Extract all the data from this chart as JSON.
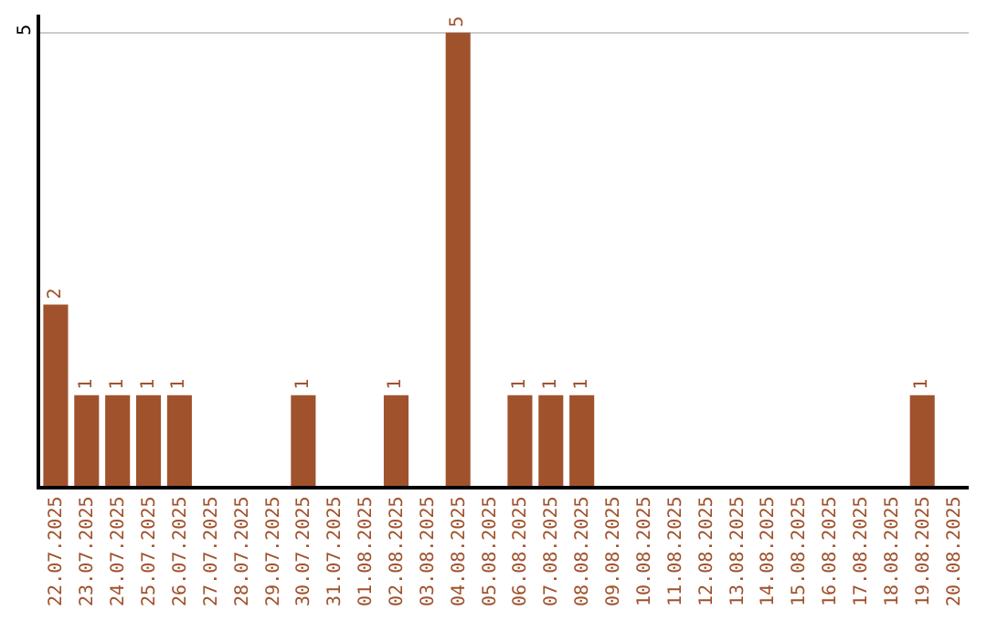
{
  "chart_data": {
    "type": "bar",
    "categories": [
      "22.07.2025",
      "23.07.2025",
      "24.07.2025",
      "25.07.2025",
      "26.07.2025",
      "27.07.2025",
      "28.07.2025",
      "29.07.2025",
      "30.07.2025",
      "31.07.2025",
      "01.08.2025",
      "02.08.2025",
      "03.08.2025",
      "04.08.2025",
      "05.08.2025",
      "06.08.2025",
      "07.08.2025",
      "08.08.2025",
      "09.08.2025",
      "10.08.2025",
      "11.08.2025",
      "12.08.2025",
      "13.08.2025",
      "14.08.2025",
      "15.08.2025",
      "16.08.2025",
      "17.08.2025",
      "18.08.2025",
      "19.08.2025",
      "20.08.2025"
    ],
    "values": [
      2,
      1,
      1,
      1,
      1,
      0,
      0,
      0,
      1,
      0,
      0,
      1,
      0,
      5,
      0,
      1,
      1,
      1,
      0,
      0,
      0,
      0,
      0,
      0,
      0,
      0,
      0,
      0,
      1,
      0
    ],
    "value_labels": [
      "2",
      "1",
      "1",
      "1",
      "1",
      null,
      null,
      null,
      "1",
      null,
      null,
      "1",
      null,
      "5",
      null,
      "1",
      "1",
      "1",
      null,
      null,
      null,
      null,
      null,
      null,
      null,
      null,
      null,
      null,
      "1",
      null
    ],
    "color": "#a0522d",
    "ylim": [
      0,
      5.2
    ],
    "yticks": [
      5
    ],
    "grid": "y",
    "legend": false
  }
}
